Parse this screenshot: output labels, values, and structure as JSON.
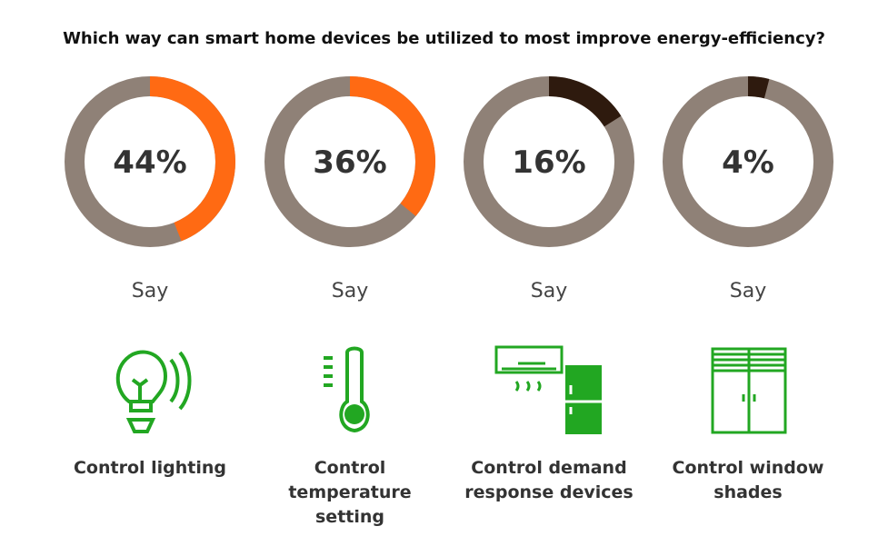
{
  "header": {
    "title": "Which way can smart home devices be utilized to most improve energy-efficiency?"
  },
  "chart_data": [
    {
      "type": "donut",
      "values": [
        44
      ],
      "value_labels": [
        "44%"
      ],
      "ylim": [
        0,
        100
      ],
      "color": "#ff6a13",
      "track_color": "#8f8177",
      "caption": "Say",
      "label": "Control lighting"
    },
    {
      "type": "donut",
      "values": [
        36
      ],
      "value_labels": [
        "36%"
      ],
      "ylim": [
        0,
        100
      ],
      "color": "#ff6a13",
      "track_color": "#8f8177",
      "caption": "Say",
      "label": "Control temperature setting"
    },
    {
      "type": "donut",
      "values": [
        16
      ],
      "value_labels": [
        "16%"
      ],
      "ylim": [
        0,
        100
      ],
      "color": "#2e1a0e",
      "track_color": "#8f8177",
      "caption": "Say",
      "label": "Control demand response devices"
    },
    {
      "type": "donut",
      "values": [
        4
      ],
      "value_labels": [
        "4%"
      ],
      "ylim": [
        0,
        100
      ],
      "color": "#2e1a0e",
      "track_color": "#8f8177",
      "caption": "Say",
      "label": "Control window shades"
    }
  ]
}
